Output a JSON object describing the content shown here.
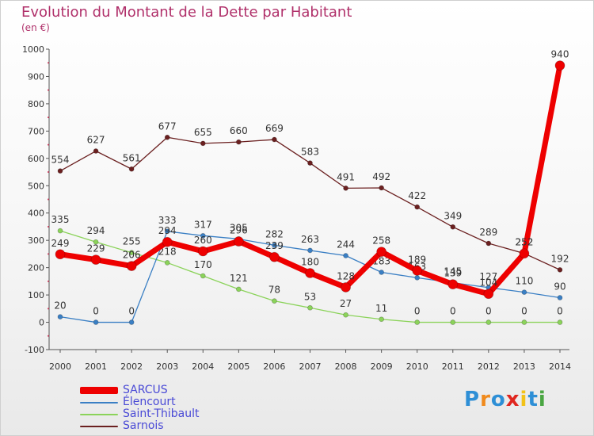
{
  "title": "Evolution du Montant de la Dette par Habitant",
  "subtitle": "(en €)",
  "logo": {
    "text": "Proxiti",
    "letter_colors": [
      "#2e8fd6",
      "#f08a1c",
      "#2e8fd6",
      "#e0261f",
      "#f2c218",
      "#2e8fd6",
      "#4aa642"
    ]
  },
  "chart_data": {
    "type": "line",
    "title": "Evolution du Montant de la Dette par Habitant",
    "ylabel": "(en €)",
    "xlabel": "",
    "x": [
      2000,
      2001,
      2002,
      2003,
      2004,
      2005,
      2006,
      2007,
      2008,
      2009,
      2010,
      2011,
      2012,
      2013,
      2014
    ],
    "ylim": [
      -100,
      1000
    ],
    "yticks": [
      -100,
      0,
      100,
      200,
      300,
      400,
      500,
      600,
      700,
      800,
      900,
      1000
    ],
    "grid": false,
    "legend_position": "bottom-left",
    "series": [
      {
        "name": "Sarnois",
        "color": "#6b2020",
        "values": [
          554,
          627,
          561,
          677,
          655,
          660,
          669,
          583,
          491,
          492,
          422,
          349,
          289,
          252,
          192
        ]
      },
      {
        "name": "Saint-Thibault",
        "color": "#8bd35a",
        "values": [
          335,
          294,
          255,
          218,
          170,
          121,
          78,
          53,
          27,
          11,
          0,
          0,
          0,
          0,
          0
        ]
      },
      {
        "name": "Élencourt",
        "color": "#3a7fc4",
        "values": [
          20,
          0,
          0,
          333,
          317,
          305,
          282,
          263,
          244,
          183,
          163,
          145,
          127,
          110,
          90
        ]
      },
      {
        "name": "SARCUS",
        "color": "#ee0000",
        "values": [
          249,
          229,
          206,
          294,
          260,
          296,
          239,
          180,
          128,
          258,
          189,
          139,
          104,
          252,
          940
        ]
      }
    ]
  }
}
